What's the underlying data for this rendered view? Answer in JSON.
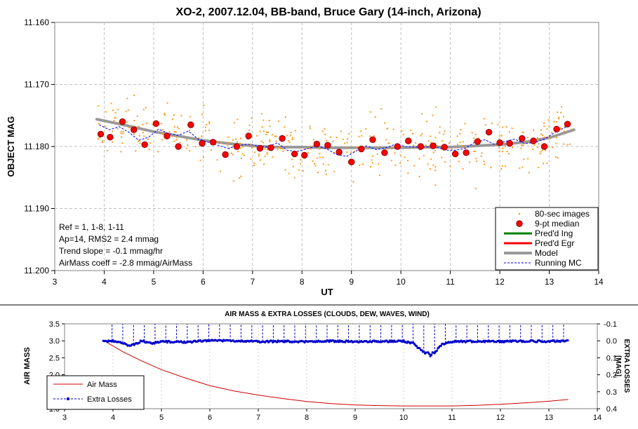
{
  "chart_data": [
    {
      "type": "scatter",
      "title": "XO-2, 2007.12.04, BB-band, Bruce Gary (14-inch, Arizona)",
      "xlabel": "UT",
      "ylabel": "OBJECT MAG",
      "xlim": [
        3,
        14
      ],
      "ylim": [
        11.16,
        11.2
      ],
      "y_inverted": true,
      "x_ticks": [
        3,
        4,
        5,
        6,
        7,
        8,
        9,
        10,
        11,
        12,
        13,
        14
      ],
      "y_ticks": [
        11.16,
        11.17,
        11.18,
        11.19,
        11.2
      ],
      "y_tick_labels": [
        "11.160",
        "11.170",
        "11.180",
        "11.190",
        "11.200"
      ],
      "grid": "dashed",
      "legend_position": "bottom-right",
      "legend": [
        "80-sec images",
        "9-pt median",
        "Pred'd Ing",
        "Pred'd Egr",
        "Model",
        "Running MC"
      ],
      "annotations": [
        "Ref = 1, 1-8, 1-11",
        "Ap=14, RMS2 = 2.4 mmag",
        "Trend slope = -0.1 mmag/hr",
        "AirMass coeff = -2.8 mmag/AirMass"
      ],
      "series": [
        {
          "name": "9-pt median",
          "x": [
            3.93,
            4.12,
            4.37,
            4.6,
            4.82,
            5.05,
            5.27,
            5.5,
            5.75,
            5.98,
            6.2,
            6.45,
            6.68,
            6.92,
            7.15,
            7.37,
            7.6,
            7.85,
            8.05,
            8.3,
            8.52,
            8.75,
            9.0,
            9.2,
            9.43,
            9.67,
            9.93,
            10.15,
            10.4,
            10.65,
            10.88,
            11.1,
            11.32,
            11.55,
            11.78,
            12.0,
            12.2,
            12.45,
            12.68,
            12.9,
            13.15,
            13.37
          ],
          "y": [
            11.178,
            11.1785,
            11.176,
            11.1773,
            11.1797,
            11.1763,
            11.1783,
            11.18,
            11.1765,
            11.1795,
            11.1793,
            11.1813,
            11.18,
            11.1783,
            11.1803,
            11.1802,
            11.1787,
            11.1812,
            11.1814,
            11.1796,
            11.1798,
            11.1809,
            11.1825,
            11.1804,
            11.1789,
            11.181,
            11.18,
            11.1791,
            11.18,
            11.1799,
            11.1801,
            11.1812,
            11.181,
            11.1792,
            11.1777,
            11.1794,
            11.1795,
            11.1787,
            11.1791,
            11.18,
            11.1772,
            11.1764
          ]
        },
        {
          "name": "Model",
          "x": [
            3.85,
            4.5,
            5.0,
            5.5,
            6.0,
            6.5,
            7.0,
            7.5,
            8.0,
            8.5,
            9.0,
            9.5,
            10.0,
            10.5,
            11.0,
            11.5,
            12.0,
            12.5,
            13.0,
            13.5
          ],
          "y": [
            11.1756,
            11.1767,
            11.1776,
            11.1783,
            11.179,
            11.1795,
            11.1799,
            11.1801,
            11.1801,
            11.1802,
            11.1802,
            11.1802,
            11.1802,
            11.1801,
            11.1801,
            11.1799,
            11.1797,
            11.1793,
            11.1786,
            11.1773
          ]
        },
        {
          "name": "Running MC",
          "x": [
            3.9,
            4.1,
            4.3,
            4.5,
            4.7,
            4.9,
            5.1,
            5.3,
            5.5,
            5.7,
            5.9,
            6.1,
            6.3,
            6.5,
            6.7,
            6.9,
            7.1,
            7.3,
            7.5,
            7.7,
            7.9,
            8.1,
            8.3,
            8.5,
            8.7,
            8.9,
            9.1,
            9.3,
            9.5,
            9.7,
            9.9,
            10.1,
            10.3,
            10.5,
            10.7,
            10.9,
            11.1,
            11.3,
            11.5,
            11.7,
            11.9,
            12.1,
            12.3,
            12.5,
            12.7,
            12.9,
            13.1,
            13.35
          ],
          "y": [
            11.1765,
            11.1773,
            11.1768,
            11.1777,
            11.179,
            11.1785,
            11.1772,
            11.1779,
            11.1782,
            11.1775,
            11.1788,
            11.1793,
            11.1798,
            11.1803,
            11.1799,
            11.1796,
            11.1799,
            11.1801,
            11.1794,
            11.1806,
            11.1808,
            11.1804,
            11.1799,
            11.1804,
            11.1813,
            11.1816,
            11.1807,
            11.1799,
            11.1805,
            11.1802,
            11.1796,
            11.18,
            11.1801,
            11.1801,
            11.18,
            11.1806,
            11.1806,
            11.1803,
            11.1793,
            11.1789,
            11.1797,
            11.1792,
            11.1788,
            11.1795,
            11.1794,
            11.1788,
            11.1778,
            11.1768
          ]
        }
      ],
      "scatter_note": "80-sec images: ~450 small orange points scattered around the model"
    },
    {
      "type": "line",
      "title": "AIR MASS & EXTRA LOSSES (CLOUDS, DEW, WAVES, WIND)",
      "ylabel": "AIR MASS",
      "y2label_line1": "EXTRA LOSSES",
      "y2label_line2": "[MAG]",
      "xlim": [
        3,
        14
      ],
      "ylim": [
        1.0,
        3.5
      ],
      "y2lim": [
        -0.1,
        0.4
      ],
      "y2_inverted": true,
      "x_ticks": [
        3,
        4,
        5,
        6,
        7,
        8,
        9,
        10,
        11,
        12,
        13,
        14
      ],
      "y_ticks": [
        1.0,
        1.5,
        2.0,
        2.5,
        3.0,
        3.5
      ],
      "y_tick_labels": [
        "1.0",
        "1.5",
        "2.0",
        "2.5",
        "3.0",
        "3.5"
      ],
      "y2_ticks": [
        -0.1,
        0.0,
        0.1,
        0.2,
        0.3,
        0.4
      ],
      "y2_tick_labels": [
        "-0.1",
        "0.0",
        "0.1",
        "0.2",
        "0.3",
        "0.4"
      ],
      "legend_position": "bottom-left",
      "legend": [
        "Air Mass",
        "Extra Losses"
      ],
      "series": [
        {
          "name": "Air Mass",
          "x": [
            3.9,
            4.2,
            4.6,
            5.0,
            5.5,
            6.0,
            6.5,
            7.0,
            7.5,
            8.0,
            8.5,
            9.0,
            9.5,
            10.0,
            10.5,
            11.0,
            11.5,
            12.0,
            12.5,
            13.0,
            13.4
          ],
          "y": [
            2.93,
            2.68,
            2.4,
            2.15,
            1.9,
            1.68,
            1.52,
            1.4,
            1.3,
            1.21,
            1.15,
            1.11,
            1.09,
            1.08,
            1.08,
            1.08,
            1.1,
            1.13,
            1.17,
            1.22,
            1.27
          ]
        },
        {
          "name": "Extra Losses",
          "x": [
            3.8,
            4.0,
            4.2,
            4.35,
            4.45,
            4.6,
            4.8,
            5.0,
            5.5,
            6.0,
            6.5,
            7.0,
            7.5,
            8.0,
            8.5,
            9.0,
            9.5,
            10.0,
            10.1,
            10.2,
            10.3,
            10.4,
            10.45,
            10.5,
            10.55,
            10.6,
            10.65,
            10.7,
            10.8,
            11.0,
            11.5,
            12.0,
            12.5,
            13.0,
            13.35
          ],
          "y": [
            0.005,
            0.0,
            0.01,
            0.03,
            0.02,
            0.0,
            0.015,
            0.005,
            0.008,
            -0.002,
            0.0,
            0.005,
            0.003,
            0.006,
            0.002,
            0.004,
            0.003,
            0.002,
            0.01,
            0.01,
            0.04,
            0.06,
            0.08,
            0.06,
            0.09,
            0.07,
            0.07,
            0.05,
            0.02,
            0.005,
            0.003,
            0.004,
            0.002,
            0.003,
            0.0
          ]
        }
      ]
    }
  ]
}
